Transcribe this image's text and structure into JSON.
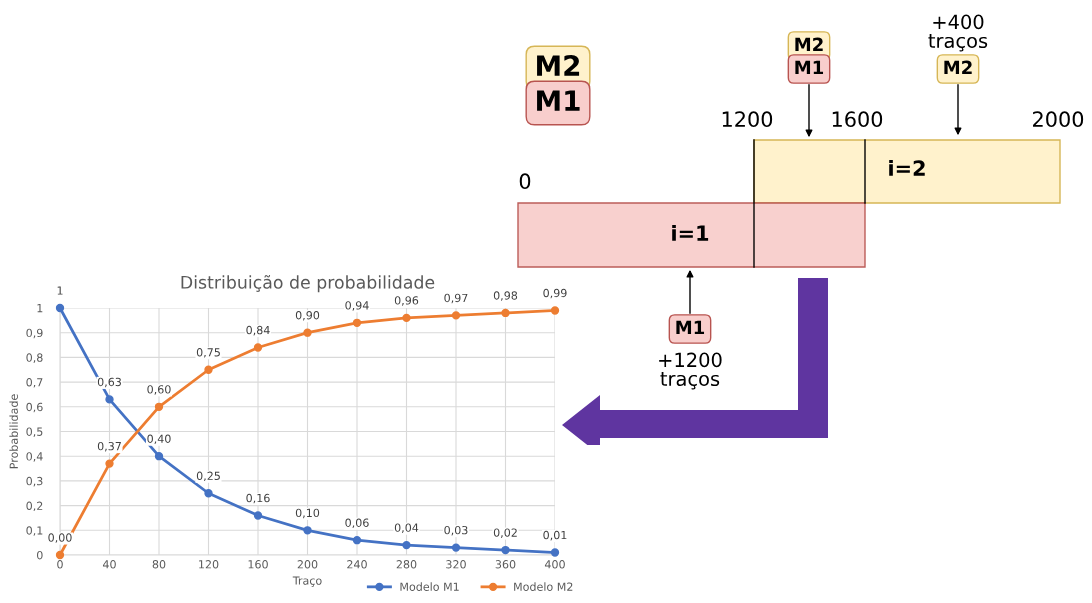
{
  "chart_data": [
    {
      "type": "line",
      "title": "Distribuição de probabilidade",
      "xlabel": "Traço",
      "ylabel": "Probabilidade",
      "x": [
        0,
        40,
        80,
        120,
        160,
        200,
        240,
        280,
        320,
        360,
        400
      ],
      "series": [
        {
          "name": "Modelo M1",
          "color": "#4472c4",
          "values": [
            1,
            0.63,
            0.4,
            0.25,
            0.16,
            0.1,
            0.06,
            0.04,
            0.03,
            0.02,
            0.01
          ],
          "value_labels": [
            "1",
            "0,63",
            "0,40",
            "0,25",
            "0,16",
            "0,10",
            "0,06",
            "0,04",
            "0,03",
            "0,02",
            "0,01"
          ]
        },
        {
          "name": "Modelo M2",
          "color": "#ed7d31",
          "values": [
            0,
            0.37,
            0.6,
            0.75,
            0.84,
            0.9,
            0.94,
            0.96,
            0.97,
            0.98,
            0.99
          ],
          "value_labels": [
            "0,00",
            "0,37",
            "0,60",
            "0,75",
            "0,84",
            "0,90",
            "0,94",
            "0,96",
            "0,97",
            "0,98",
            "0,99"
          ]
        }
      ],
      "xlim": [
        0,
        400
      ],
      "xticks": [
        0,
        40,
        80,
        120,
        160,
        200,
        240,
        280,
        320,
        360,
        400
      ],
      "ylim": [
        0,
        1
      ],
      "yticks": [
        0,
        {
          "value": 0.1,
          "label": "0,1"
        },
        {
          "value": 0.2,
          "label": "0,2"
        },
        {
          "value": 0.3,
          "label": "0,3"
        },
        {
          "value": 0.4,
          "label": "0,4"
        },
        {
          "value": 0.5,
          "label": "0,5"
        },
        {
          "value": 0.6,
          "label": "0,6"
        },
        {
          "value": 0.7,
          "label": "0,7"
        },
        {
          "value": 0.8,
          "label": "0,8"
        },
        {
          "value": 0.9,
          "label": "0,9"
        },
        1
      ],
      "grid": true,
      "legend": "bottom",
      "marker": "circle",
      "line_style": "solid"
    },
    {
      "type": "other",
      "annotations": [
        "0",
        "1200",
        "1600",
        "2000",
        "i=1",
        "i=2",
        "M2",
        "M1",
        "M2",
        "M1",
        "+400\ntraços",
        "M2",
        "M1",
        "+1200\ntraços"
      ]
    }
  ]
}
